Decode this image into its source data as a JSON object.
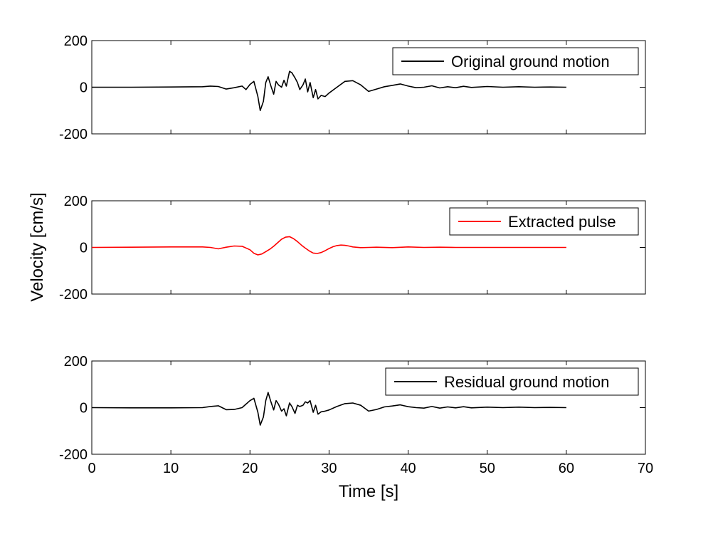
{
  "chart_data": [
    {
      "type": "line",
      "series": [
        {
          "name": "Original ground motion",
          "color": "#000000"
        }
      ],
      "xlim": [
        0,
        70
      ],
      "ylim": [
        -200,
        200
      ],
      "x_ticks": [
        0,
        10,
        20,
        30,
        40,
        50,
        60,
        70
      ],
      "y_ticks": [
        -200,
        0,
        200
      ],
      "x_tick_labels": [
        "0",
        "10",
        "20",
        "30",
        "40",
        "50",
        "60",
        "70"
      ],
      "y_tick_labels": [
        "-200",
        "0",
        "200"
      ],
      "legend_position": "top-right",
      "grid": false,
      "x": [
        0,
        5,
        10,
        14,
        15,
        16,
        17,
        18,
        19,
        19.5,
        20,
        20.5,
        21,
        21.3,
        21.7,
        22,
        22.3,
        22.6,
        23,
        23.3,
        23.6,
        24,
        24.3,
        24.6,
        25,
        25.3,
        25.7,
        26,
        26.3,
        26.7,
        27,
        27.3,
        27.6,
        28,
        28.3,
        28.6,
        29,
        29.5,
        30,
        31,
        32,
        33,
        34,
        35,
        36,
        37,
        38,
        39,
        40,
        41,
        42,
        43,
        44,
        45,
        46,
        47,
        48,
        50,
        52,
        54,
        56,
        58,
        60
      ],
      "y": [
        0,
        0,
        1,
        2,
        5,
        3,
        -8,
        -2,
        5,
        -10,
        12,
        25,
        -40,
        -100,
        -60,
        20,
        45,
        10,
        -30,
        25,
        10,
        0,
        30,
        5,
        68,
        62,
        40,
        20,
        -10,
        10,
        35,
        -20,
        20,
        -45,
        -10,
        -50,
        -35,
        -40,
        -25,
        0,
        25,
        28,
        10,
        -18,
        -8,
        2,
        8,
        14,
        5,
        -2,
        0,
        6,
        -3,
        2,
        -2,
        4,
        -1,
        3,
        0,
        2,
        0,
        1,
        0
      ]
    },
    {
      "type": "line",
      "series": [
        {
          "name": "Extracted pulse",
          "color": "#ff0000"
        }
      ],
      "xlim": [
        0,
        70
      ],
      "ylim": [
        -200,
        200
      ],
      "x_ticks": [
        0,
        10,
        20,
        30,
        40,
        50,
        60,
        70
      ],
      "y_ticks": [
        -200,
        0,
        200
      ],
      "x_tick_labels": [
        "0",
        "10",
        "20",
        "30",
        "40",
        "50",
        "60",
        "70"
      ],
      "y_tick_labels": [
        "-200",
        "0",
        "200"
      ],
      "legend_position": "top-right",
      "grid": false,
      "x": [
        0,
        5,
        10,
        14,
        15,
        16,
        17,
        18,
        19,
        20,
        20.5,
        21,
        21.5,
        22,
        22.5,
        23,
        23.5,
        24,
        24.5,
        25,
        25.5,
        26,
        26.5,
        27,
        27.5,
        28,
        28.5,
        29,
        29.5,
        30,
        30.5,
        31,
        31.5,
        32,
        32.5,
        33,
        34,
        35,
        36,
        38,
        40,
        42,
        44,
        46,
        50,
        55,
        60
      ],
      "y": [
        0,
        1,
        2,
        2,
        0,
        -6,
        1,
        6,
        5,
        -10,
        -25,
        -32,
        -28,
        -18,
        -8,
        5,
        20,
        35,
        44,
        46,
        38,
        25,
        10,
        -3,
        -15,
        -24,
        -26,
        -22,
        -14,
        -5,
        3,
        8,
        10,
        9,
        6,
        2,
        -1,
        0,
        1,
        -1,
        2,
        0,
        1,
        0,
        0,
        0,
        0
      ]
    },
    {
      "type": "line",
      "series": [
        {
          "name": "Residual ground motion",
          "color": "#000000"
        }
      ],
      "xlim": [
        0,
        70
      ],
      "ylim": [
        -200,
        200
      ],
      "x_ticks": [
        0,
        10,
        20,
        30,
        40,
        50,
        60,
        70
      ],
      "y_ticks": [
        -200,
        0,
        200
      ],
      "x_tick_labels": [
        "0",
        "10",
        "20",
        "30",
        "40",
        "50",
        "60",
        "70"
      ],
      "y_tick_labels": [
        "-200",
        "0",
        "200"
      ],
      "legend_position": "top-right",
      "grid": false,
      "x": [
        0,
        5,
        10,
        14,
        15,
        16,
        17,
        18,
        19,
        19.5,
        20,
        20.5,
        21,
        21.3,
        21.7,
        22,
        22.3,
        22.6,
        23,
        23.3,
        23.6,
        24,
        24.3,
        24.6,
        25,
        25.3,
        25.7,
        26,
        26.3,
        26.7,
        27,
        27.3,
        27.6,
        28,
        28.3,
        28.6,
        29,
        29.5,
        30,
        31,
        32,
        33,
        34,
        35,
        36,
        37,
        38,
        39,
        40,
        41,
        42,
        43,
        44,
        45,
        46,
        47,
        48,
        50,
        52,
        54,
        56,
        58,
        60
      ],
      "y": [
        0,
        -1,
        -1,
        0,
        5,
        8,
        -9,
        -8,
        0,
        15,
        30,
        40,
        -20,
        -75,
        -40,
        30,
        65,
        30,
        -10,
        30,
        15,
        -15,
        -5,
        -35,
        20,
        5,
        -25,
        10,
        5,
        10,
        25,
        20,
        30,
        -20,
        10,
        -28,
        -18,
        -15,
        -10,
        5,
        17,
        20,
        10,
        -15,
        -8,
        3,
        7,
        12,
        4,
        0,
        -2,
        5,
        -2,
        3,
        -1,
        4,
        -1,
        2,
        0,
        2,
        0,
        1,
        0
      ]
    }
  ],
  "ylabel": "Velocity [cm/s]",
  "xlabel": "Time [s]"
}
